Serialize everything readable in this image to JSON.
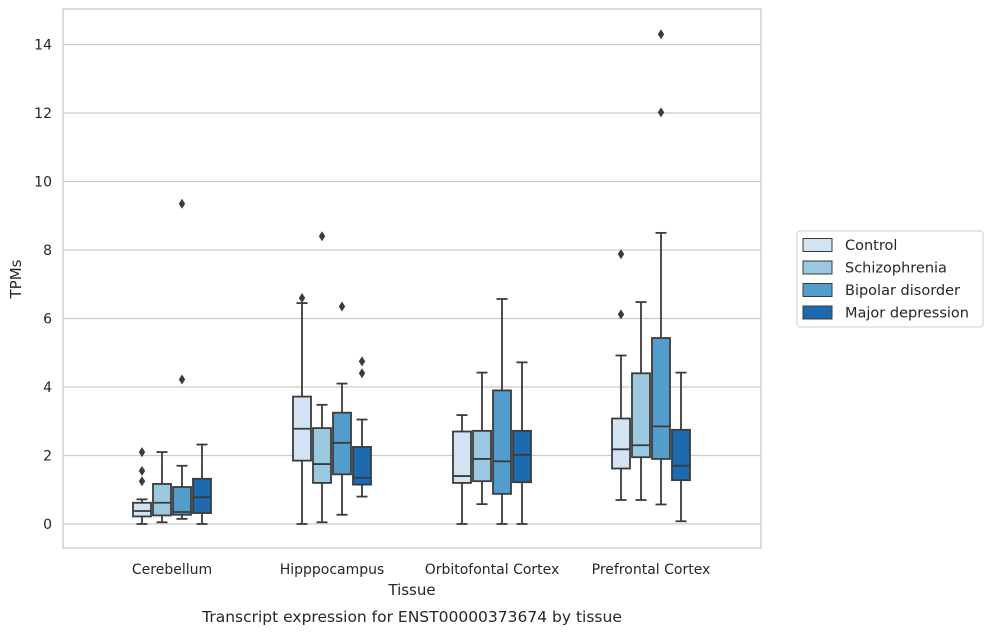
{
  "chart_data": {
    "type": "box",
    "title": "",
    "caption": "Transcript expression for ENST00000373674 by tissue",
    "xlabel": "Tissue",
    "ylabel": "TPMs",
    "ylim": [
      -0.7,
      15
    ],
    "yticks": [
      0,
      2,
      4,
      6,
      8,
      10,
      12,
      14
    ],
    "grid": "horizontal",
    "legend_position": "right",
    "categories": [
      "Cerebellum",
      "Hipppocampus",
      "Orbitofontal Cortex",
      "Prefrontal Cortex"
    ],
    "series": [
      {
        "name": "Control",
        "color": "#d2e3f3",
        "boxes": [
          {
            "whislo": 0.0,
            "q1": 0.22,
            "med": 0.38,
            "q3": 0.62,
            "whishi": 0.72,
            "fliers": [
              1.25,
              1.55,
              2.1
            ]
          },
          {
            "whislo": 0.0,
            "q1": 1.85,
            "med": 2.78,
            "q3": 3.72,
            "whishi": 6.45,
            "fliers": [
              6.6
            ]
          },
          {
            "whislo": 0.0,
            "q1": 1.2,
            "med": 1.4,
            "q3": 2.7,
            "whishi": 3.18,
            "fliers": []
          },
          {
            "whislo": 0.7,
            "q1": 1.62,
            "med": 2.18,
            "q3": 3.08,
            "whishi": 4.92,
            "fliers": [
              6.12,
              7.88
            ]
          }
        ]
      },
      {
        "name": "Schizophrenia",
        "color": "#9ac8e0",
        "boxes": [
          {
            "whislo": 0.05,
            "q1": 0.25,
            "med": 0.62,
            "q3": 1.17,
            "whishi": 2.1,
            "fliers": []
          },
          {
            "whislo": 0.05,
            "q1": 1.2,
            "med": 1.75,
            "q3": 2.8,
            "whishi": 3.48,
            "fliers": [
              8.4
            ]
          },
          {
            "whislo": 0.58,
            "q1": 1.25,
            "med": 1.9,
            "q3": 2.72,
            "whishi": 4.42,
            "fliers": []
          },
          {
            "whislo": 0.7,
            "q1": 1.95,
            "med": 2.3,
            "q3": 4.4,
            "whishi": 6.48,
            "fliers": []
          }
        ]
      },
      {
        "name": "Bipolar disorder",
        "color": "#529dcc",
        "boxes": [
          {
            "whislo": 0.15,
            "q1": 0.27,
            "med": 0.35,
            "q3": 1.08,
            "whishi": 1.7,
            "fliers": [
              4.22,
              9.35
            ]
          },
          {
            "whislo": 0.27,
            "q1": 1.45,
            "med": 2.37,
            "q3": 3.25,
            "whishi": 4.1,
            "fliers": [
              6.35
            ]
          },
          {
            "whislo": 0.0,
            "q1": 0.88,
            "med": 1.83,
            "q3": 3.9,
            "whishi": 6.57,
            "fliers": []
          },
          {
            "whislo": 0.57,
            "q1": 1.9,
            "med": 2.85,
            "q3": 5.43,
            "whishi": 8.5,
            "fliers": [
              12.02,
              14.3
            ]
          }
        ]
      },
      {
        "name": "Major depression",
        "color": "#1c6aaf",
        "boxes": [
          {
            "whislo": 0.0,
            "q1": 0.32,
            "med": 0.78,
            "q3": 1.32,
            "whishi": 2.32,
            "fliers": []
          },
          {
            "whislo": 0.8,
            "q1": 1.15,
            "med": 1.35,
            "q3": 2.25,
            "whishi": 3.05,
            "fliers": [
              4.4,
              4.75
            ]
          },
          {
            "whislo": 0.0,
            "q1": 1.22,
            "med": 2.02,
            "q3": 2.72,
            "whishi": 4.72,
            "fliers": []
          },
          {
            "whislo": 0.08,
            "q1": 1.28,
            "med": 1.7,
            "q3": 2.75,
            "whishi": 4.42,
            "fliers": []
          }
        ]
      }
    ]
  }
}
